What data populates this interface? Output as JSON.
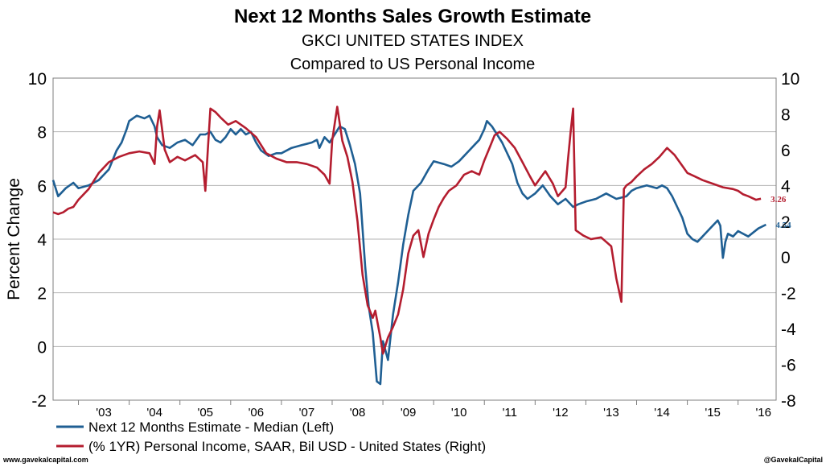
{
  "chart_data": {
    "type": "line",
    "title": "Next 12 Months Sales Growth Estimate",
    "subtitle": "GKCI UNITED STATES INDEX",
    "subtitle2": "Compared to US Personal Income",
    "ylabel": "Percent Change",
    "ylim": [
      -2,
      10
    ],
    "y2lim": [
      -8,
      10
    ],
    "y_ticks": [
      "-2",
      "0",
      "2",
      "4",
      "6",
      "8",
      "10"
    ],
    "y2_ticks": [
      "-8",
      "-6",
      "-4",
      "-2",
      "0",
      "2",
      "4",
      "6",
      "8",
      "10"
    ],
    "x_ticks": [
      "'03",
      "'04",
      "'05",
      "'06",
      "'07",
      "'08",
      "'09",
      "'10",
      "'11",
      "'12",
      "'13",
      "'14",
      "'15",
      "'16"
    ],
    "xlim": [
      2002.5,
      2016.75
    ],
    "grid": true,
    "legend_position": "bottom-left",
    "series": [
      {
        "name": "Next 12 Months Estimate - Median  (Left)",
        "axis": "left",
        "color": "#1f5f93",
        "end_label": "4.54",
        "x": [
          2002.5,
          2002.6,
          2002.75,
          2002.9,
          2003.0,
          2003.2,
          2003.4,
          2003.6,
          2003.75,
          2003.85,
          2003.95,
          2004.0,
          2004.15,
          2004.3,
          2004.4,
          2004.5,
          2004.55,
          2004.65,
          2004.8,
          2004.95,
          2005.1,
          2005.25,
          2005.4,
          2005.5,
          2005.6,
          2005.7,
          2005.8,
          2005.9,
          2006.0,
          2006.1,
          2006.2,
          2006.3,
          2006.4,
          2006.5,
          2006.6,
          2006.75,
          2006.9,
          2007.0,
          2007.2,
          2007.4,
          2007.6,
          2007.7,
          2007.75,
          2007.85,
          2007.95,
          2008.05,
          2008.15,
          2008.25,
          2008.35,
          2008.45,
          2008.55,
          2008.65,
          2008.72,
          2008.8,
          2008.88,
          2008.95,
          2009.0,
          2009.1,
          2009.2,
          2009.3,
          2009.4,
          2009.5,
          2009.6,
          2009.75,
          2009.9,
          2010.0,
          2010.2,
          2010.35,
          2010.5,
          2010.6,
          2010.7,
          2010.8,
          2010.9,
          2011.0,
          2011.05,
          2011.15,
          2011.25,
          2011.35,
          2011.45,
          2011.55,
          2011.65,
          2011.75,
          2011.85,
          2012.0,
          2012.15,
          2012.3,
          2012.45,
          2012.6,
          2012.75,
          2012.85,
          2013.0,
          2013.2,
          2013.4,
          2013.6,
          2013.8,
          2013.9,
          2014.0,
          2014.2,
          2014.4,
          2014.5,
          2014.6,
          2014.7,
          2014.8,
          2014.9,
          2015.0,
          2015.1,
          2015.2,
          2015.3,
          2015.4,
          2015.5,
          2015.6,
          2015.65,
          2015.7,
          2015.75,
          2015.8,
          2015.9,
          2016.0,
          2016.2,
          2016.4,
          2016.55
        ],
        "y": [
          6.2,
          5.6,
          5.9,
          6.1,
          5.9,
          6.0,
          6.2,
          6.6,
          7.3,
          7.6,
          8.1,
          8.4,
          8.6,
          8.5,
          8.6,
          8.2,
          7.8,
          7.5,
          7.4,
          7.6,
          7.7,
          7.5,
          7.9,
          7.9,
          8.0,
          7.7,
          7.6,
          7.8,
          8.1,
          7.9,
          8.1,
          7.9,
          8.0,
          7.6,
          7.3,
          7.1,
          7.2,
          7.2,
          7.4,
          7.5,
          7.6,
          7.7,
          7.4,
          7.8,
          7.6,
          7.9,
          8.2,
          8.1,
          7.5,
          6.8,
          5.7,
          3.0,
          1.5,
          0.5,
          -1.3,
          -1.4,
          0.2,
          -0.5,
          1.2,
          2.4,
          3.8,
          4.9,
          5.8,
          6.1,
          6.6,
          6.9,
          6.8,
          6.7,
          6.9,
          7.1,
          7.3,
          7.5,
          7.7,
          8.1,
          8.4,
          8.2,
          7.9,
          7.6,
          7.2,
          6.8,
          6.1,
          5.7,
          5.5,
          5.7,
          6.0,
          5.6,
          5.3,
          5.5,
          5.2,
          5.3,
          5.4,
          5.5,
          5.7,
          5.5,
          5.6,
          5.8,
          5.9,
          6.0,
          5.9,
          6.0,
          5.9,
          5.6,
          5.2,
          4.8,
          4.2,
          4.0,
          3.9,
          4.1,
          4.3,
          4.5,
          4.7,
          4.5,
          3.3,
          3.9,
          4.2,
          4.1,
          4.3,
          4.1,
          4.4,
          4.54
        ]
      },
      {
        "name": "(% 1YR) Personal Income, SAAR, Bil USD - United States  (Right)",
        "axis": "right",
        "color": "#b41d2f",
        "end_label": "3.26",
        "x": [
          2002.5,
          2002.6,
          2002.7,
          2002.8,
          2002.9,
          2003.0,
          2003.2,
          2003.4,
          2003.6,
          2003.8,
          2004.0,
          2004.2,
          2004.4,
          2004.5,
          2004.55,
          2004.6,
          2004.7,
          2004.8,
          2004.95,
          2005.1,
          2005.3,
          2005.45,
          2005.5,
          2005.55,
          2005.6,
          2005.7,
          2005.8,
          2005.95,
          2006.1,
          2006.3,
          2006.5,
          2006.7,
          2006.9,
          2007.1,
          2007.3,
          2007.5,
          2007.7,
          2007.85,
          2007.95,
          2008.0,
          2008.1,
          2008.2,
          2008.3,
          2008.4,
          2008.5,
          2008.6,
          2008.7,
          2008.8,
          2008.85,
          2008.95,
          2009.0,
          2009.1,
          2009.2,
          2009.3,
          2009.4,
          2009.5,
          2009.6,
          2009.7,
          2009.8,
          2009.9,
          2010.0,
          2010.1,
          2010.2,
          2010.3,
          2010.45,
          2010.6,
          2010.75,
          2010.9,
          2011.0,
          2011.1,
          2011.2,
          2011.3,
          2011.45,
          2011.6,
          2011.75,
          2011.9,
          2012.0,
          2012.1,
          2012.2,
          2012.35,
          2012.45,
          2012.6,
          2012.65,
          2012.7,
          2012.75,
          2012.8,
          2012.95,
          2013.1,
          2013.3,
          2013.5,
          2013.6,
          2013.7,
          2013.75,
          2013.8,
          2013.9,
          2014.0,
          2014.15,
          2014.3,
          2014.45,
          2014.6,
          2014.75,
          2014.9,
          2015.0,
          2015.15,
          2015.3,
          2015.5,
          2015.7,
          2015.9,
          2016.0,
          2016.1,
          2016.2,
          2016.35,
          2016.45
        ],
        "y": [
          2.5,
          2.4,
          2.5,
          2.7,
          2.8,
          3.2,
          3.8,
          4.7,
          5.3,
          5.6,
          5.8,
          5.9,
          5.8,
          5.2,
          7.3,
          8.2,
          6.0,
          5.3,
          5.6,
          5.4,
          5.7,
          5.3,
          3.7,
          6.0,
          8.3,
          8.1,
          7.8,
          7.4,
          7.6,
          7.2,
          6.7,
          5.8,
          5.5,
          5.3,
          5.3,
          5.2,
          5.0,
          4.6,
          4.1,
          6.5,
          8.4,
          6.5,
          5.6,
          4.2,
          2.0,
          -1.0,
          -2.7,
          -3.4,
          -3.0,
          -4.5,
          -5.4,
          -4.5,
          -3.9,
          -3.2,
          -1.8,
          0.2,
          1.2,
          1.5,
          0.0,
          1.3,
          2.1,
          2.8,
          3.3,
          3.7,
          4.0,
          4.6,
          4.8,
          4.6,
          5.4,
          6.1,
          6.8,
          7.0,
          6.6,
          6.1,
          5.3,
          4.5,
          4.0,
          4.4,
          4.8,
          4.1,
          3.4,
          3.9,
          5.5,
          7.0,
          8.3,
          1.5,
          1.2,
          1.0,
          1.1,
          0.6,
          -1.2,
          -2.5,
          3.8,
          4.0,
          4.2,
          4.5,
          4.9,
          5.2,
          5.6,
          6.1,
          5.7,
          5.1,
          4.7,
          4.5,
          4.3,
          4.1,
          3.9,
          3.8,
          3.7,
          3.5,
          3.4,
          3.2,
          3.26
        ]
      }
    ]
  },
  "footer": {
    "left": "www.gavekalcapital.com",
    "right": "@GavekalCapital"
  }
}
